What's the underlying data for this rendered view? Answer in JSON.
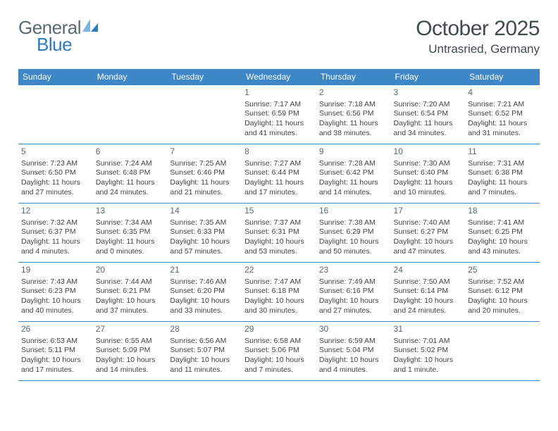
{
  "brand": {
    "general": "General",
    "blue": "Blue",
    "icon_color_light": "#7db3de",
    "icon_color_dark": "#2d7bbf"
  },
  "title": "October 2025",
  "location": "Untrasried, Germany",
  "colors": {
    "header_bg": "#3d87c7",
    "header_text": "#ffffff",
    "border": "#3d87c7",
    "body_text": "#444444",
    "daynum_text": "#5a6a6e",
    "title_text": "#414b4e"
  },
  "typography": {
    "title_fontsize_pt": 22,
    "location_fontsize_pt": 13,
    "weekday_fontsize_pt": 9,
    "daynum_fontsize_pt": 9,
    "body_fontsize_pt": 8
  },
  "weekdays": [
    "Sunday",
    "Monday",
    "Tuesday",
    "Wednesday",
    "Thursday",
    "Friday",
    "Saturday"
  ],
  "grid_blank_leading": 3,
  "days": [
    {
      "n": 1,
      "sunrise": "7:17 AM",
      "sunset": "6:59 PM",
      "daylight": "11 hours and 41 minutes."
    },
    {
      "n": 2,
      "sunrise": "7:18 AM",
      "sunset": "6:56 PM",
      "daylight": "11 hours and 38 minutes."
    },
    {
      "n": 3,
      "sunrise": "7:20 AM",
      "sunset": "6:54 PM",
      "daylight": "11 hours and 34 minutes."
    },
    {
      "n": 4,
      "sunrise": "7:21 AM",
      "sunset": "6:52 PM",
      "daylight": "11 hours and 31 minutes."
    },
    {
      "n": 5,
      "sunrise": "7:23 AM",
      "sunset": "6:50 PM",
      "daylight": "11 hours and 27 minutes."
    },
    {
      "n": 6,
      "sunrise": "7:24 AM",
      "sunset": "6:48 PM",
      "daylight": "11 hours and 24 minutes."
    },
    {
      "n": 7,
      "sunrise": "7:25 AM",
      "sunset": "6:46 PM",
      "daylight": "11 hours and 21 minutes."
    },
    {
      "n": 8,
      "sunrise": "7:27 AM",
      "sunset": "6:44 PM",
      "daylight": "11 hours and 17 minutes."
    },
    {
      "n": 9,
      "sunrise": "7:28 AM",
      "sunset": "6:42 PM",
      "daylight": "11 hours and 14 minutes."
    },
    {
      "n": 10,
      "sunrise": "7:30 AM",
      "sunset": "6:40 PM",
      "daylight": "11 hours and 10 minutes."
    },
    {
      "n": 11,
      "sunrise": "7:31 AM",
      "sunset": "6:38 PM",
      "daylight": "11 hours and 7 minutes."
    },
    {
      "n": 12,
      "sunrise": "7:32 AM",
      "sunset": "6:37 PM",
      "daylight": "11 hours and 4 minutes."
    },
    {
      "n": 13,
      "sunrise": "7:34 AM",
      "sunset": "6:35 PM",
      "daylight": "11 hours and 0 minutes."
    },
    {
      "n": 14,
      "sunrise": "7:35 AM",
      "sunset": "6:33 PM",
      "daylight": "10 hours and 57 minutes."
    },
    {
      "n": 15,
      "sunrise": "7:37 AM",
      "sunset": "6:31 PM",
      "daylight": "10 hours and 53 minutes."
    },
    {
      "n": 16,
      "sunrise": "7:38 AM",
      "sunset": "6:29 PM",
      "daylight": "10 hours and 50 minutes."
    },
    {
      "n": 17,
      "sunrise": "7:40 AM",
      "sunset": "6:27 PM",
      "daylight": "10 hours and 47 minutes."
    },
    {
      "n": 18,
      "sunrise": "7:41 AM",
      "sunset": "6:25 PM",
      "daylight": "10 hours and 43 minutes."
    },
    {
      "n": 19,
      "sunrise": "7:43 AM",
      "sunset": "6:23 PM",
      "daylight": "10 hours and 40 minutes."
    },
    {
      "n": 20,
      "sunrise": "7:44 AM",
      "sunset": "6:21 PM",
      "daylight": "10 hours and 37 minutes."
    },
    {
      "n": 21,
      "sunrise": "7:46 AM",
      "sunset": "6:20 PM",
      "daylight": "10 hours and 33 minutes."
    },
    {
      "n": 22,
      "sunrise": "7:47 AM",
      "sunset": "6:18 PM",
      "daylight": "10 hours and 30 minutes."
    },
    {
      "n": 23,
      "sunrise": "7:49 AM",
      "sunset": "6:16 PM",
      "daylight": "10 hours and 27 minutes."
    },
    {
      "n": 24,
      "sunrise": "7:50 AM",
      "sunset": "6:14 PM",
      "daylight": "10 hours and 24 minutes."
    },
    {
      "n": 25,
      "sunrise": "7:52 AM",
      "sunset": "6:12 PM",
      "daylight": "10 hours and 20 minutes."
    },
    {
      "n": 26,
      "sunrise": "6:53 AM",
      "sunset": "5:11 PM",
      "daylight": "10 hours and 17 minutes."
    },
    {
      "n": 27,
      "sunrise": "6:55 AM",
      "sunset": "5:09 PM",
      "daylight": "10 hours and 14 minutes."
    },
    {
      "n": 28,
      "sunrise": "6:56 AM",
      "sunset": "5:07 PM",
      "daylight": "10 hours and 11 minutes."
    },
    {
      "n": 29,
      "sunrise": "6:58 AM",
      "sunset": "5:06 PM",
      "daylight": "10 hours and 7 minutes."
    },
    {
      "n": 30,
      "sunrise": "6:59 AM",
      "sunset": "5:04 PM",
      "daylight": "10 hours and 4 minutes."
    },
    {
      "n": 31,
      "sunrise": "7:01 AM",
      "sunset": "5:02 PM",
      "daylight": "10 hours and 1 minute."
    }
  ],
  "labels": {
    "sunrise_prefix": "Sunrise: ",
    "sunset_prefix": "Sunset: ",
    "daylight_prefix": "Daylight: "
  }
}
